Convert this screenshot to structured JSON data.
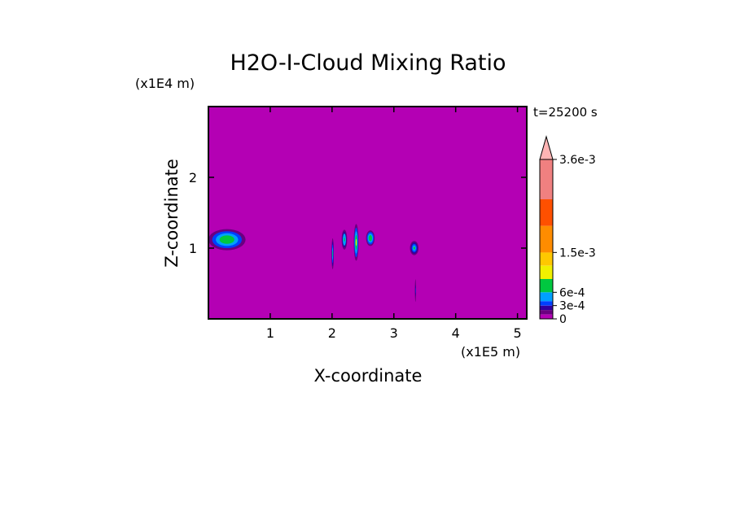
{
  "chart_data": {
    "type": "heatmap",
    "title": "H2O-I-Cloud Mixing Ratio",
    "xlabel": "X-coordinate",
    "ylabel": "Z-coordinate",
    "x_scale_label": "(x1E5 m)",
    "y_scale_label": "(x1E4 m)",
    "time_label": "t=25200 s",
    "xlim": [
      0,
      5.15
    ],
    "ylim": [
      0,
      3.0
    ],
    "x_ticks": [
      1,
      2,
      3,
      4,
      5
    ],
    "y_ticks": [
      1,
      2
    ],
    "background_color": "#b400b4",
    "colorbar": {
      "levels": [
        0,
        0.0001,
        0.0002,
        0.0003,
        0.0004,
        0.0006,
        0.0009,
        0.0012,
        0.0015,
        0.0021,
        0.0027,
        0.0036
      ],
      "colors": [
        "#b400b4",
        "#6a0080",
        "#3000a0",
        "#0040ff",
        "#00a0ff",
        "#00c840",
        "#f0f000",
        "#ffc800",
        "#ff8c00",
        "#ff5000",
        "#e60000",
        "#f08080"
      ],
      "over_color": "#ffb4b4",
      "tick_labels": [
        {
          "value": 0,
          "label": "0"
        },
        {
          "value": 0.0003,
          "label": "3e-4"
        },
        {
          "value": 0.0006,
          "label": "6e-4"
        },
        {
          "value": 0.0015,
          "label": "1.5e-3"
        },
        {
          "value": 0.0036,
          "label": "3.6e-3"
        }
      ]
    },
    "clouds": [
      {
        "x": 0.3,
        "z": 1.12,
        "rx": 0.3,
        "rz": 0.15,
        "peak": 0.0008
      },
      {
        "x": 2.01,
        "z": 0.92,
        "rx": 0.018,
        "rz": 0.22,
        "peak": 0.0006
      },
      {
        "x": 2.2,
        "z": 1.12,
        "rx": 0.045,
        "rz": 0.14,
        "peak": 0.0007
      },
      {
        "x": 2.39,
        "z": 1.08,
        "rx": 0.04,
        "rz": 0.26,
        "peak": 0.0009
      },
      {
        "x": 2.62,
        "z": 1.14,
        "rx": 0.07,
        "rz": 0.11,
        "peak": 0.0008
      },
      {
        "x": 3.33,
        "z": 1.0,
        "rx": 0.07,
        "rz": 0.1,
        "peak": 0.0006
      },
      {
        "x": 3.35,
        "z": 0.4,
        "rx": 0.012,
        "rz": 0.2,
        "peak": 0.0003
      }
    ]
  }
}
